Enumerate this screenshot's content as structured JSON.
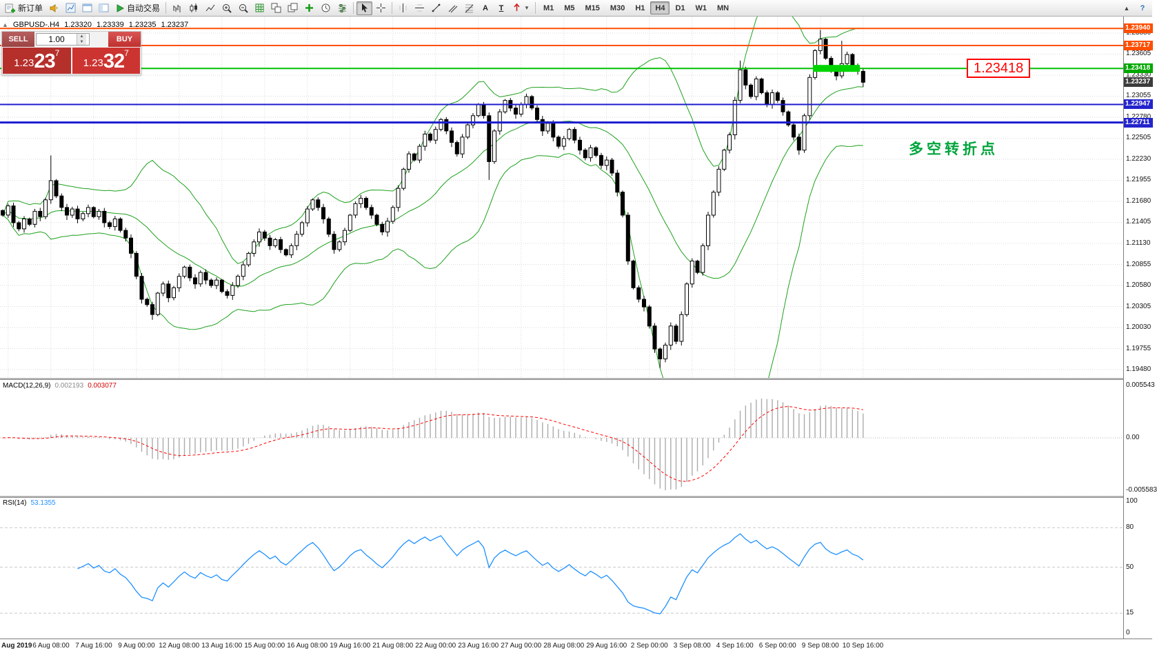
{
  "toolbar": {
    "new_order_label": "新订单",
    "autotrading_label": "自动交易",
    "text_tool_glyph": "A",
    "label_tool_glyph": "T",
    "caret_glyph": "▼",
    "scroll_up_glyph": "▲",
    "help_glyph": "?",
    "timeframes": [
      "M1",
      "M5",
      "M15",
      "M30",
      "H1",
      "H4",
      "D1",
      "W1",
      "MN"
    ],
    "active_timeframe": "H4"
  },
  "quote_header": {
    "toggle_glyph": "▲",
    "symbol": "GBPUSD-.H4",
    "open": "1.23320",
    "high": "1.23339",
    "low": "1.23235",
    "close": "1.23237"
  },
  "trade_panel": {
    "sell_label": "SELL",
    "buy_label": "BUY",
    "volume": "1.00",
    "spinner_up": "▲",
    "spinner_down": "▼",
    "sell_price_small": "1.23",
    "sell_price_big": "23",
    "sell_price_sup": "7",
    "buy_price_small": "1.23",
    "buy_price_big": "32",
    "buy_price_sup": "7"
  },
  "annotations": {
    "price_label": "1.23418",
    "turning_point": "多空转折点"
  },
  "price_axis": {
    "grid_labels": [
      "1.23880",
      "1.23605",
      "1.23330",
      "1.23055",
      "1.22780",
      "1.22505",
      "1.22230",
      "1.21955",
      "1.21680",
      "1.21405",
      "1.21130",
      "1.20855",
      "1.20580",
      "1.20305",
      "1.20030",
      "1.19755",
      "1.19480"
    ],
    "tags": [
      {
        "text": "1.23940",
        "price": 1.2394,
        "bg": "#ff4e00"
      },
      {
        "text": "1.23717",
        "price": 1.23717,
        "bg": "#ff4e00"
      },
      {
        "text": "1.23418",
        "price": 1.23418,
        "bg": "#00a800"
      },
      {
        "text": "1.23237",
        "price": 1.23237,
        "bg": "#3c3c3c"
      },
      {
        "text": "1.22947",
        "price": 1.22947,
        "bg": "#2424cc"
      },
      {
        "text": "1.22711",
        "price": 1.22711,
        "bg": "#2424cc"
      }
    ]
  },
  "macd": {
    "title": "MACD(12,26,9)",
    "value1": "0.002193",
    "value2": "0.003077",
    "axis_top": "0.005543",
    "axis_zero": "0.00",
    "axis_bottom": "-0.005583"
  },
  "rsi": {
    "title": "RSI(14)",
    "value": "53.1355",
    "axis": [
      {
        "text": "100",
        "v": 100
      },
      {
        "text": "80",
        "v": 80
      },
      {
        "text": "50",
        "v": 50
      },
      {
        "text": "15",
        "v": 15
      },
      {
        "text": "0",
        "v": 0
      }
    ],
    "levels": [
      80,
      50,
      15
    ]
  },
  "time_axis": {
    "ticks": [
      {
        "label": "Aug 2019",
        "idx": 1,
        "bold": true
      },
      {
        "label": "6 Aug 08:00",
        "idx": 9
      },
      {
        "label": "7 Aug 16:00",
        "idx": 17
      },
      {
        "label": "9 Aug 00:00",
        "idx": 25
      },
      {
        "label": "12 Aug 08:00",
        "idx": 33
      },
      {
        "label": "13 Aug 16:00",
        "idx": 41
      },
      {
        "label": "15 Aug 00:00",
        "idx": 49
      },
      {
        "label": "16 Aug 08:00",
        "idx": 57
      },
      {
        "label": "19 Aug 16:00",
        "idx": 65
      },
      {
        "label": "21 Aug 08:00",
        "idx": 73
      },
      {
        "label": "22 Aug 00:00",
        "idx": 81
      },
      {
        "label": "23 Aug 16:00",
        "idx": 89
      },
      {
        "label": "27 Aug 00:00",
        "idx": 97
      },
      {
        "label": "28 Aug 08:00",
        "idx": 105
      },
      {
        "label": "29 Aug 16:00",
        "idx": 113
      },
      {
        "label": "2 Sep 00:00",
        "idx": 121
      },
      {
        "label": "3 Sep 08:00",
        "idx": 129
      },
      {
        "label": "4 Sep 16:00",
        "idx": 137
      },
      {
        "label": "6 Sep 00:00",
        "idx": 145
      },
      {
        "label": "9 Sep 08:00",
        "idx": 153
      },
      {
        "label": "10 Sep 16:00",
        "idx": 161
      }
    ]
  },
  "chart_data": {
    "type": "candlestick",
    "symbol": "GBPUSD",
    "timeframe": "H4",
    "price_range": {
      "top": 1.2406,
      "bottom": 1.1939
    },
    "candle_spacing": 7.75,
    "colors": {
      "up": "#ffffff",
      "down": "#000000",
      "outline": "#000000",
      "grid": "#dadada"
    },
    "closes": [
      1.215,
      1.2162,
      1.214,
      1.2132,
      1.2145,
      1.2138,
      1.2155,
      1.2148,
      1.217,
      1.2195,
      1.2175,
      1.216,
      1.215,
      1.2158,
      1.2145,
      1.2152,
      1.216,
      1.2148,
      1.2155,
      1.214,
      1.2135,
      1.2145,
      1.213,
      1.212,
      1.21,
      1.207,
      1.204,
      1.2033,
      1.202,
      1.2048,
      1.206,
      1.2042,
      1.2055,
      1.207,
      1.2082,
      1.2068,
      1.206,
      1.2075,
      1.2065,
      1.2058,
      1.2065,
      1.205,
      1.2045,
      1.2058,
      1.207,
      1.2085,
      1.21,
      1.2115,
      1.2128,
      1.212,
      1.211,
      1.2118,
      1.2105,
      1.2098,
      1.211,
      1.2125,
      1.214,
      1.2158,
      1.217,
      1.216,
      1.2145,
      1.2125,
      1.2105,
      1.2115,
      1.213,
      1.215,
      1.2165,
      1.2172,
      1.216,
      1.215,
      1.2138,
      1.2128,
      1.2142,
      1.216,
      1.2185,
      1.221,
      1.223,
      1.2222,
      1.224,
      1.2256,
      1.2248,
      1.2262,
      1.2275,
      1.226,
      1.2245,
      1.223,
      1.2252,
      1.2268,
      1.228,
      1.2295,
      1.228,
      1.222,
      1.226,
      1.2285,
      1.23,
      1.229,
      1.2282,
      1.2295,
      1.2305,
      1.229,
      1.2275,
      1.226,
      1.227,
      1.2252,
      1.224,
      1.225,
      1.2262,
      1.2248,
      1.2235,
      1.2225,
      1.2238,
      1.2228,
      1.2215,
      1.2222,
      1.2205,
      1.218,
      1.215,
      1.209,
      1.2055,
      1.204,
      1.203,
      1.2005,
      1.1975,
      1.1962,
      1.198,
      1.2005,
      1.1985,
      1.202,
      1.206,
      1.209,
      1.2075,
      1.211,
      1.215,
      1.218,
      1.221,
      1.2235,
      1.2255,
      1.23,
      1.234,
      1.232,
      1.2305,
      1.2328,
      1.231,
      1.2295,
      1.231,
      1.23,
      1.2285,
      1.2268,
      1.2252,
      1.2235,
      1.228,
      1.233,
      1.2365,
      1.238,
      1.2355,
      1.234,
      1.2332,
      1.2348,
      1.236,
      1.2345,
      1.2338,
      1.23237
    ],
    "wick_overrides": {
      "9": {
        "h": 1.2228
      },
      "28": {
        "l": 1.2013
      },
      "91": {
        "l": 1.2196
      },
      "123": {
        "l": 1.195
      },
      "138": {
        "h": 1.2352
      },
      "153": {
        "h": 1.2392
      },
      "157": {
        "h": 1.2378
      }
    },
    "bollinger": {
      "period": 20,
      "deviation": 2,
      "color": "#1da11d"
    },
    "hlines": [
      {
        "price": 1.2394,
        "color": "#ff4e00",
        "width": 2
      },
      {
        "price": 1.23717,
        "color": "#ff4e00",
        "width": 2
      },
      {
        "price": 1.23418,
        "color": "#00bf00",
        "width": 2
      },
      {
        "price": 1.22947,
        "color": "#1c1ccf",
        "width": 2
      },
      {
        "price": 1.22711,
        "color": "#1c1ccf",
        "width": 3
      }
    ],
    "green_box": {
      "start_idx": 152,
      "end_idx": 160,
      "price": 1.23418,
      "color": "#00d400",
      "height": 10
    },
    "macd_params": {
      "fast": 12,
      "slow": 26,
      "signal": 9,
      "histogram_color": "#ababab",
      "signal_color": "#ff0000"
    },
    "rsi_params": {
      "period": 14,
      "line_color": "#1e90ff"
    }
  }
}
